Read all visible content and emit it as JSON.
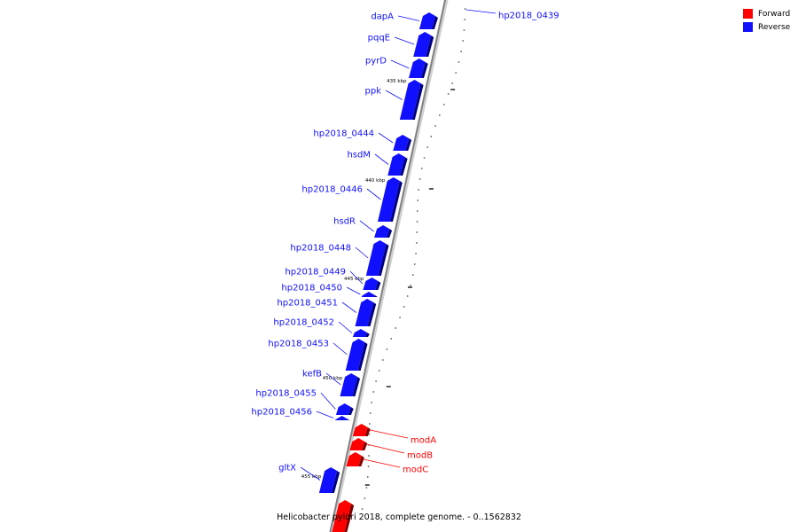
{
  "map": {
    "caption": "Helicobacter pylori 2018, complete genome. - 0..1562832"
  },
  "legend": {
    "forward_label": "Forward",
    "reverse_label": "Reverse",
    "forward_color": "#ff0000",
    "reverse_color": "#1010ff"
  },
  "colors": {
    "backbone_light": "#d0d0d0",
    "backbone_dark": "#808080",
    "reverse_side": "#000080",
    "forward_side": "#800000"
  },
  "scale_labels": [
    "435 kbp",
    "440 kbp",
    "445 kbp",
    "450 kbp",
    "455 kbp"
  ],
  "genes": [
    {
      "name": "dapA",
      "strand": "reverse"
    },
    {
      "name": "hp2018_0439",
      "strand": "reverse"
    },
    {
      "name": "pqqE",
      "strand": "reverse"
    },
    {
      "name": "pyrD",
      "strand": "reverse"
    },
    {
      "name": "ppk",
      "strand": "reverse"
    },
    {
      "name": "hp2018_0444",
      "strand": "reverse"
    },
    {
      "name": "hsdM",
      "strand": "reverse"
    },
    {
      "name": "hp2018_0446",
      "strand": "reverse"
    },
    {
      "name": "hsdR",
      "strand": "reverse"
    },
    {
      "name": "hp2018_0448",
      "strand": "reverse"
    },
    {
      "name": "hp2018_0449",
      "strand": "reverse"
    },
    {
      "name": "hp2018_0450",
      "strand": "reverse"
    },
    {
      "name": "hp2018_0451",
      "strand": "reverse"
    },
    {
      "name": "hp2018_0452",
      "strand": "reverse"
    },
    {
      "name": "hp2018_0453",
      "strand": "reverse"
    },
    {
      "name": "kefB",
      "strand": "reverse"
    },
    {
      "name": "hp2018_0455",
      "strand": "reverse"
    },
    {
      "name": "hp2018_0456",
      "strand": "reverse"
    },
    {
      "name": "modA",
      "strand": "forward"
    },
    {
      "name": "modB",
      "strand": "forward"
    },
    {
      "name": "modC",
      "strand": "forward"
    },
    {
      "name": "gltX",
      "strand": "reverse"
    }
  ]
}
